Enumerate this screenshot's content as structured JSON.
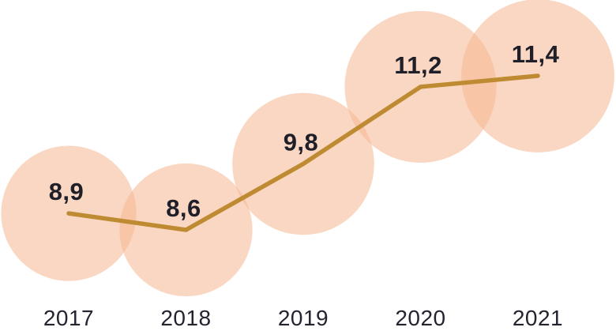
{
  "chart_data": {
    "type": "line",
    "variant": "line-with-area-proportional-bubbles",
    "title": "",
    "xlabel": "",
    "ylabel": "",
    "grid": false,
    "axes_visible": false,
    "legend": false,
    "categories": [
      "2017",
      "2018",
      "2019",
      "2020",
      "2021"
    ],
    "values": [
      8.9,
      8.6,
      9.8,
      11.2,
      11.4
    ],
    "value_labels": [
      "8,9",
      "8,6",
      "9,8",
      "11,2",
      "11,4"
    ],
    "decimal_separator": ",",
    "series": [
      {
        "name": "value-by-year",
        "values": [
          8.9,
          8.6,
          9.8,
          11.2,
          11.4
        ]
      }
    ],
    "colors": {
      "background": "#FFFFFF",
      "bubble_fill": "#F6B690",
      "bubble_opacity": 0.55,
      "line": "#BE8B32",
      "value_label_text": "#1E1F28",
      "year_label_text": "#23242F"
    }
  }
}
